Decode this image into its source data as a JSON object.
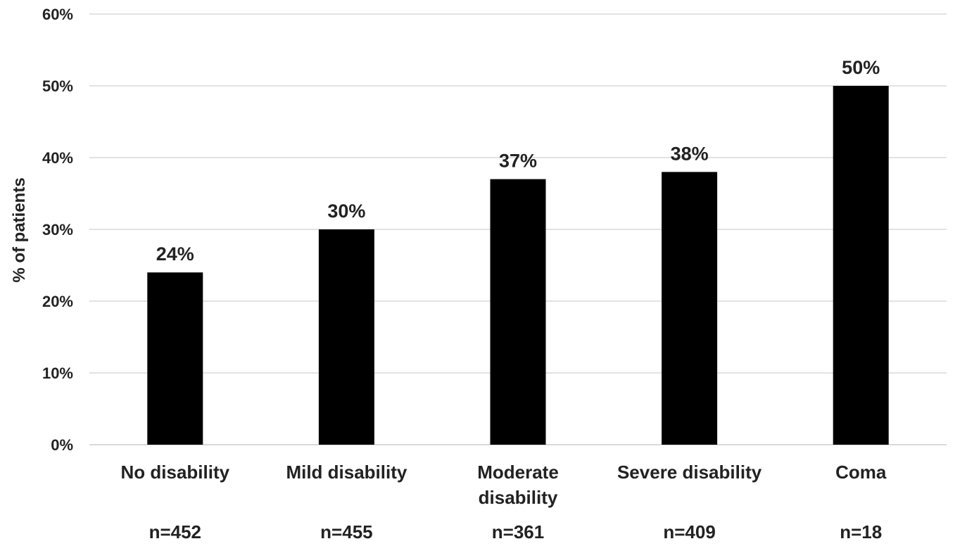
{
  "chart_data": {
    "type": "bar",
    "title": "",
    "xlabel": "",
    "ylabel": "% of patients",
    "ylim": [
      0,
      60
    ],
    "yticks": [
      "0%",
      "10%",
      "20%",
      "30%",
      "40%",
      "50%",
      "60%"
    ],
    "ytick_values": [
      0,
      10,
      20,
      30,
      40,
      50,
      60
    ],
    "grid": true,
    "legend": "none",
    "categories": [
      [
        "No disability"
      ],
      [
        "Mild disability"
      ],
      [
        "Moderate",
        "disability"
      ],
      [
        "Severe disability"
      ],
      [
        "Coma"
      ]
    ],
    "sample_sizes": [
      "n=452",
      "n=455",
      "n=361",
      "n=409",
      "n=18"
    ],
    "values": [
      24,
      30,
      37,
      38,
      50
    ],
    "data_labels": [
      "24%",
      "30%",
      "37%",
      "38%",
      "50%"
    ],
    "bar_color": "#000000",
    "grid_color": "#d9d9d9"
  }
}
